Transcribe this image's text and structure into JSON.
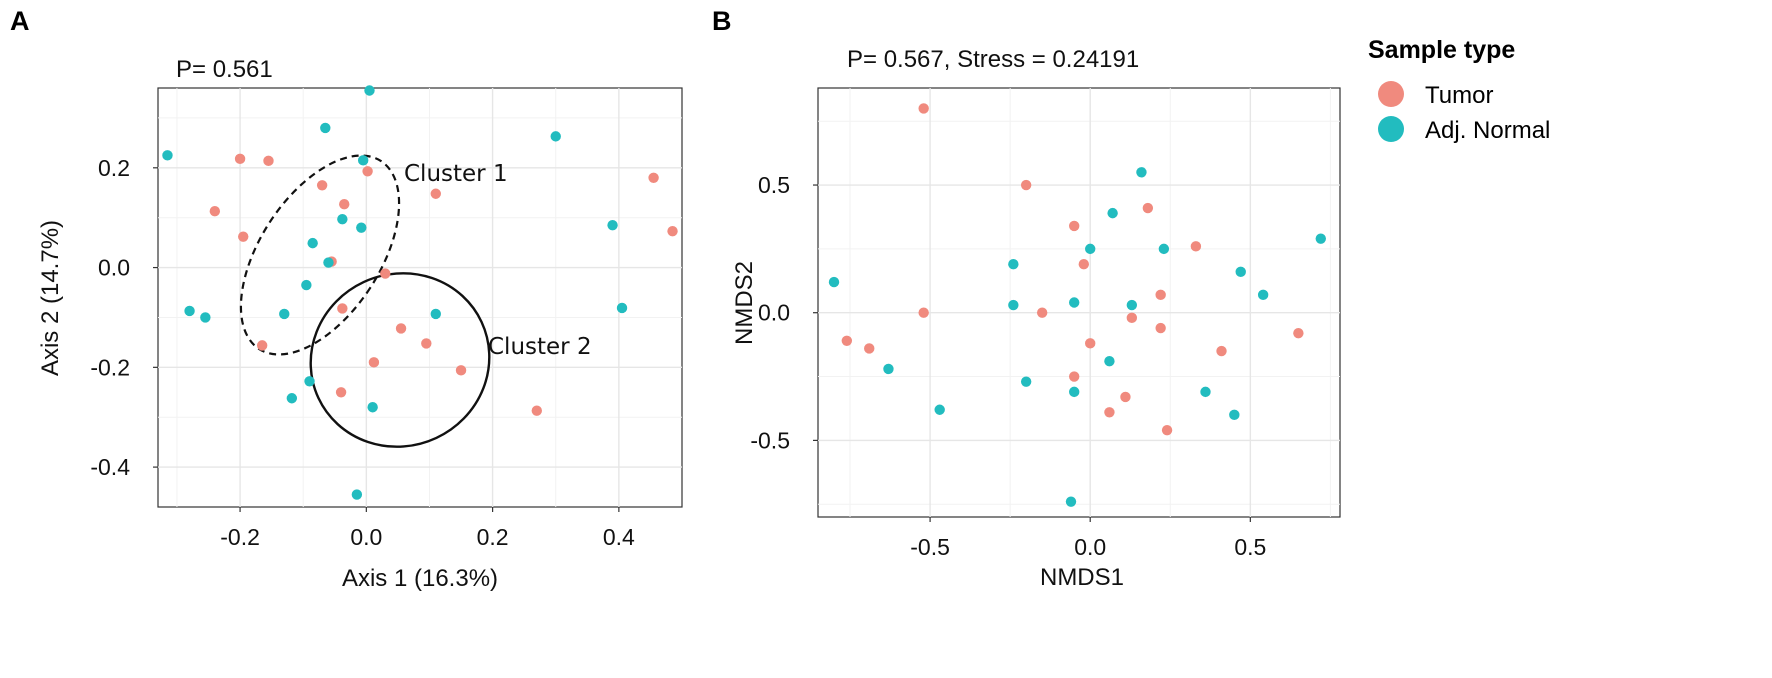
{
  "colors": {
    "tumor": "#f08a7e",
    "normal": "#22bcbf"
  },
  "chart_data": [
    {
      "panel": "A",
      "type": "scatter",
      "stat_text": "P= 0.561",
      "xlabel": "Axis 1 (16.3%)",
      "ylabel": "Axis 2 (14.7%)",
      "xlim": [
        -0.33,
        0.5
      ],
      "ylim": [
        -0.48,
        0.36
      ],
      "xticks": [
        -0.2,
        0.0,
        0.2,
        0.4
      ],
      "xtick_labels": [
        "-0.2",
        "0.0",
        "0.2",
        "0.4"
      ],
      "yticks": [
        -0.4,
        -0.2,
        0.0,
        0.2
      ],
      "ytick_labels": [
        "-0.4",
        "-0.2",
        "0.0",
        "0.2"
      ],
      "annotations": [
        "Cluster 1",
        "Cluster 2"
      ],
      "series": [
        {
          "name": "Tumor",
          "points": [
            [
              -0.2,
              0.218
            ],
            [
              -0.155,
              0.214
            ],
            [
              -0.24,
              0.113
            ],
            [
              -0.195,
              0.062
            ],
            [
              -0.07,
              0.165
            ],
            [
              -0.035,
              0.127
            ],
            [
              0.002,
              0.193
            ],
            [
              0.11,
              0.148
            ],
            [
              -0.055,
              0.012
            ],
            [
              0.03,
              -0.012
            ],
            [
              -0.038,
              -0.082
            ],
            [
              -0.165,
              -0.156
            ],
            [
              0.055,
              -0.122
            ],
            [
              0.095,
              -0.152
            ],
            [
              0.012,
              -0.19
            ],
            [
              0.15,
              -0.206
            ],
            [
              -0.04,
              -0.25
            ],
            [
              0.27,
              -0.287
            ],
            [
              0.455,
              0.18
            ],
            [
              0.485,
              0.073
            ]
          ]
        },
        {
          "name": "Adj. Normal",
          "points": [
            [
              -0.315,
              0.225
            ],
            [
              -0.065,
              0.28
            ],
            [
              0.005,
              0.355
            ],
            [
              0.3,
              0.263
            ],
            [
              -0.005,
              0.215
            ],
            [
              -0.038,
              0.097
            ],
            [
              -0.008,
              0.08
            ],
            [
              -0.085,
              0.049
            ],
            [
              -0.06,
              0.01
            ],
            [
              -0.095,
              -0.035
            ],
            [
              -0.28,
              -0.087
            ],
            [
              -0.255,
              -0.1
            ],
            [
              -0.13,
              -0.093
            ],
            [
              0.11,
              -0.093
            ],
            [
              0.39,
              0.085
            ],
            [
              0.405,
              -0.081
            ],
            [
              -0.09,
              -0.228
            ],
            [
              -0.118,
              -0.262
            ],
            [
              0.01,
              -0.28
            ],
            [
              -0.015,
              -0.455
            ]
          ]
        }
      ]
    },
    {
      "panel": "B",
      "type": "scatter",
      "stat_text": "P= 0.567,  Stress = 0.24191",
      "xlabel": "NMDS1",
      "ylabel": "NMDS2",
      "xlim": [
        -0.85,
        0.78
      ],
      "ylim": [
        -0.8,
        0.88
      ],
      "xticks": [
        -0.5,
        0.0,
        0.5
      ],
      "xtick_labels": [
        "-0.5",
        "0.0",
        "0.5"
      ],
      "yticks": [
        -0.5,
        0.0,
        0.5
      ],
      "ytick_labels": [
        "-0.5",
        "0.0",
        "0.5"
      ],
      "legend": {
        "title": "Sample type",
        "entries": [
          "Tumor",
          "Adj. Normal"
        ],
        "position": "right"
      },
      "series": [
        {
          "name": "Tumor",
          "points": [
            [
              -0.52,
              0.8
            ],
            [
              -0.2,
              0.5
            ],
            [
              -0.05,
              0.34
            ],
            [
              -0.02,
              0.19
            ],
            [
              0.18,
              0.41
            ],
            [
              0.33,
              0.26
            ],
            [
              0.22,
              0.07
            ],
            [
              -0.52,
              0.0
            ],
            [
              -0.15,
              0.0
            ],
            [
              0.13,
              -0.02
            ],
            [
              0.22,
              -0.06
            ],
            [
              0.0,
              -0.12
            ],
            [
              0.65,
              -0.08
            ],
            [
              0.41,
              -0.15
            ],
            [
              -0.76,
              -0.11
            ],
            [
              -0.69,
              -0.14
            ],
            [
              -0.05,
              -0.25
            ],
            [
              0.11,
              -0.33
            ],
            [
              0.06,
              -0.39
            ],
            [
              0.24,
              -0.46
            ]
          ]
        },
        {
          "name": "Adj. Normal",
          "points": [
            [
              0.16,
              0.55
            ],
            [
              0.07,
              0.39
            ],
            [
              0.0,
              0.25
            ],
            [
              -0.24,
              0.19
            ],
            [
              0.23,
              0.25
            ],
            [
              0.72,
              0.29
            ],
            [
              0.47,
              0.16
            ],
            [
              0.54,
              0.07
            ],
            [
              -0.8,
              0.12
            ],
            [
              -0.24,
              0.03
            ],
            [
              -0.05,
              0.04
            ],
            [
              0.13,
              0.03
            ],
            [
              -0.63,
              -0.22
            ],
            [
              -0.2,
              -0.27
            ],
            [
              0.06,
              -0.19
            ],
            [
              -0.05,
              -0.31
            ],
            [
              0.36,
              -0.31
            ],
            [
              0.45,
              -0.4
            ],
            [
              -0.47,
              -0.38
            ],
            [
              -0.06,
              -0.74
            ]
          ]
        }
      ]
    }
  ]
}
